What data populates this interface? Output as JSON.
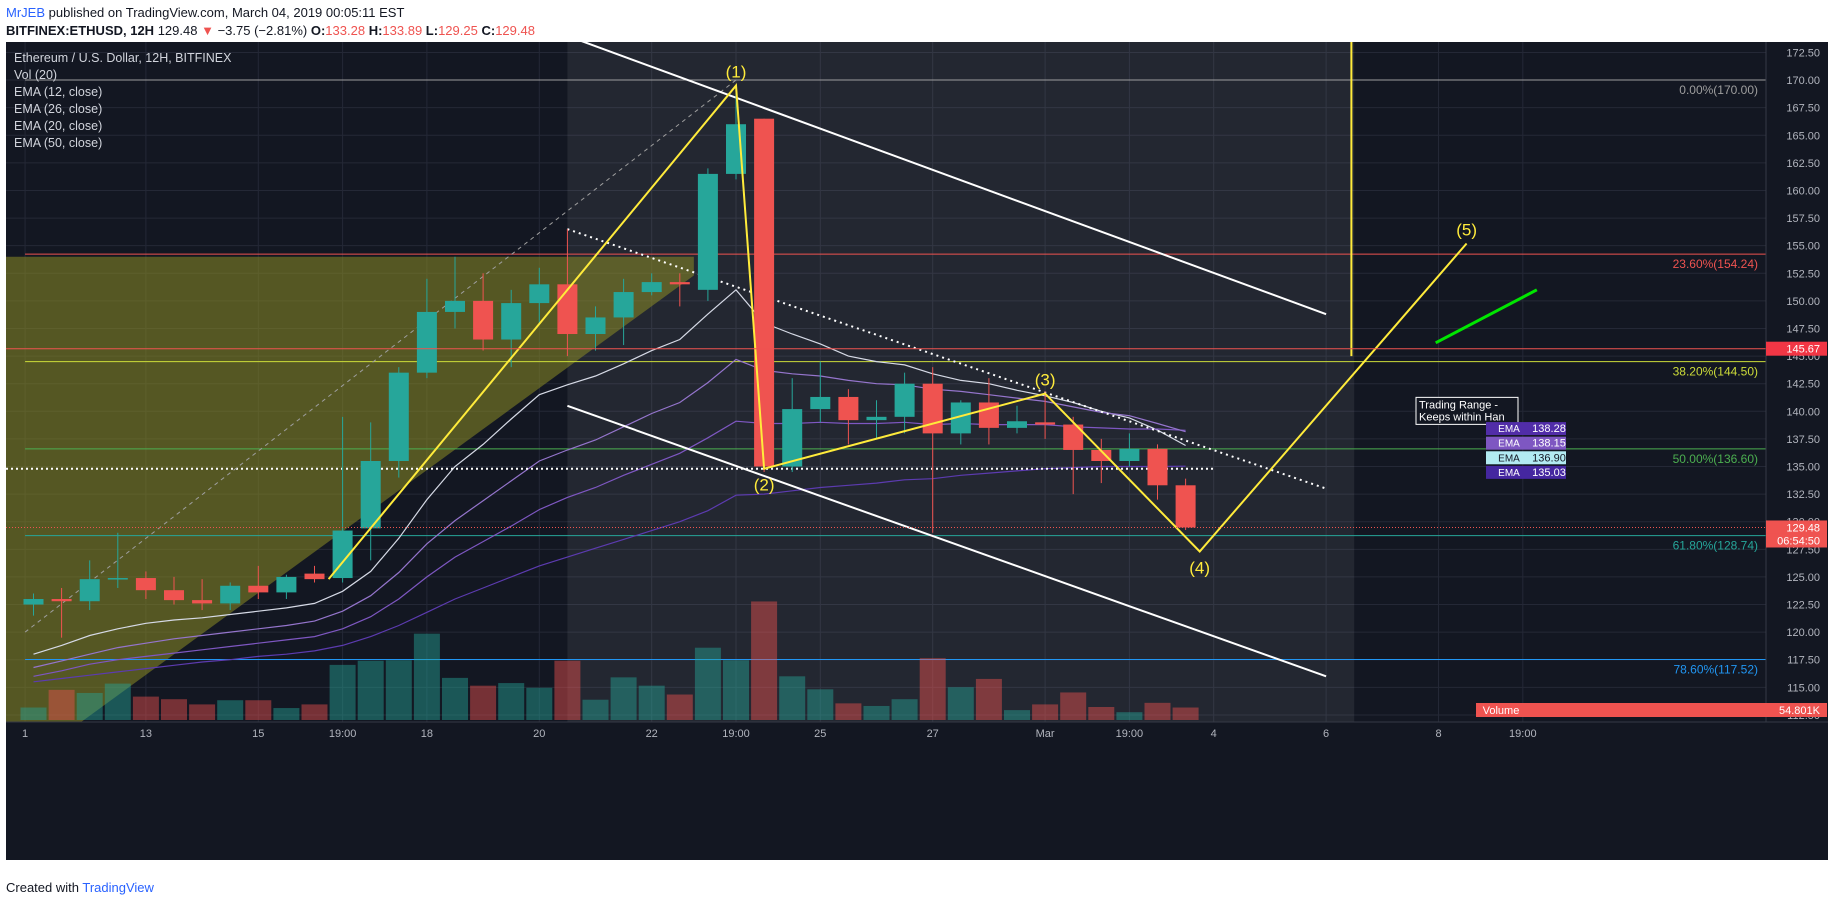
{
  "header": {
    "author": "MrJEB",
    "published": "published on TradingView.com, March 04, 2019 00:05:11 EST",
    "symbol": "BITFINEX:ETHUSD, 12H",
    "last": "129.48",
    "arrow": "▼",
    "change": "−3.75 (−2.81%)",
    "o_label": "O:",
    "o": "133.28",
    "h_label": "H:",
    "h": "133.89",
    "l_label": "L:",
    "l": "129.25",
    "c_label": "C:",
    "c": "129.48"
  },
  "legend": [
    "Ethereum / U.S. Dollar, 12H, BITFINEX",
    "Vol (20)",
    "EMA (12, close)",
    "EMA (26, close)",
    "EMA (20, close)",
    "EMA (50, close)"
  ],
  "footer": {
    "created_with": "Created with",
    "brand": "TradingView"
  },
  "colors": {
    "background": "#131722",
    "up": "#26a69a",
    "down": "#ef5350",
    "elliott": "#ffeb3b",
    "channel": "#ffffff",
    "fib_shade": "#9b9b2f"
  },
  "chart_data": {
    "type": "candlestick",
    "title": "Ethereum / U.S. Dollar, 12H, BITFINEX",
    "ylim": [
      111.5,
      173.5
    ],
    "y_ticks": [
      "172.50",
      "170.00",
      "167.50",
      "165.00",
      "162.50",
      "160.00",
      "157.50",
      "155.00",
      "152.50",
      "150.00",
      "147.50",
      "145.00",
      "142.50",
      "140.00",
      "137.50",
      "135.00",
      "132.50",
      "130.00",
      "127.50",
      "125.00",
      "122.50",
      "120.00",
      "117.50",
      "115.00",
      "112.50"
    ],
    "x_ticks": [
      {
        "i": -0.3,
        "label": "1"
      },
      {
        "i": 4,
        "label": "13"
      },
      {
        "i": 8,
        "label": "15"
      },
      {
        "i": 11,
        "label": "19:00"
      },
      {
        "i": 14,
        "label": "18"
      },
      {
        "i": 18,
        "label": "20"
      },
      {
        "i": 22,
        "label": "22"
      },
      {
        "i": 25,
        "label": "19:00"
      },
      {
        "i": 28,
        "label": "25"
      },
      {
        "i": 32,
        "label": "27"
      },
      {
        "i": 36,
        "label": "Mar"
      },
      {
        "i": 39,
        "label": "19:00"
      },
      {
        "i": 42,
        "label": "4"
      },
      {
        "i": 46,
        "label": "6"
      },
      {
        "i": 50,
        "label": "8"
      },
      {
        "i": 53,
        "label": "19:00"
      }
    ],
    "candles": [
      {
        "o": 122.5,
        "h": 123.5,
        "l": 121.5,
        "c": 123.0
      },
      {
        "o": 123.0,
        "h": 124.0,
        "l": 119.5,
        "c": 122.8
      },
      {
        "o": 122.8,
        "h": 126.5,
        "l": 122.0,
        "c": 124.8
      },
      {
        "o": 124.8,
        "h": 129.0,
        "l": 124.0,
        "c": 124.9
      },
      {
        "o": 124.9,
        "h": 125.5,
        "l": 123.0,
        "c": 123.8
      },
      {
        "o": 123.8,
        "h": 125.0,
        "l": 122.5,
        "c": 122.9
      },
      {
        "o": 122.9,
        "h": 124.8,
        "l": 122.0,
        "c": 122.6
      },
      {
        "o": 122.6,
        "h": 124.5,
        "l": 122.0,
        "c": 124.2
      },
      {
        "o": 124.2,
        "h": 126.0,
        "l": 123.0,
        "c": 123.6
      },
      {
        "o": 123.6,
        "h": 125.2,
        "l": 123.0,
        "c": 125.0
      },
      {
        "o": 125.3,
        "h": 126.0,
        "l": 124.5,
        "c": 124.8
      },
      {
        "o": 124.9,
        "h": 139.5,
        "l": 124.5,
        "c": 129.2
      },
      {
        "o": 129.4,
        "h": 139.0,
        "l": 126.5,
        "c": 135.5
      },
      {
        "o": 135.5,
        "h": 144.0,
        "l": 134.0,
        "c": 143.5
      },
      {
        "o": 143.5,
        "h": 152.0,
        "l": 143.0,
        "c": 149.0
      },
      {
        "o": 149.0,
        "h": 154.0,
        "l": 147.5,
        "c": 150.0
      },
      {
        "o": 150.0,
        "h": 152.5,
        "l": 145.5,
        "c": 146.5
      },
      {
        "o": 146.5,
        "h": 151.0,
        "l": 144.0,
        "c": 149.8
      },
      {
        "o": 149.8,
        "h": 153.0,
        "l": 148.0,
        "c": 151.5
      },
      {
        "o": 151.5,
        "h": 156.5,
        "l": 145.0,
        "c": 147.0
      },
      {
        "o": 147.0,
        "h": 149.5,
        "l": 145.5,
        "c": 148.5
      },
      {
        "o": 148.5,
        "h": 152.0,
        "l": 146.0,
        "c": 150.8
      },
      {
        "o": 150.8,
        "h": 152.5,
        "l": 150.5,
        "c": 151.7
      },
      {
        "o": 151.7,
        "h": 152.5,
        "l": 149.5,
        "c": 151.5
      },
      {
        "o": 151.0,
        "h": 162.0,
        "l": 150.0,
        "c": 161.5
      },
      {
        "o": 161.5,
        "h": 169.5,
        "l": 161.0,
        "c": 166.0
      },
      {
        "o": 166.5,
        "h": 166.5,
        "l": 134.5,
        "c": 135.0
      },
      {
        "o": 135.0,
        "h": 143.0,
        "l": 134.5,
        "c": 140.2
      },
      {
        "o": 140.2,
        "h": 144.5,
        "l": 139.0,
        "c": 141.3
      },
      {
        "o": 141.3,
        "h": 142.0,
        "l": 137.0,
        "c": 139.2
      },
      {
        "o": 139.2,
        "h": 141.0,
        "l": 137.5,
        "c": 139.5
      },
      {
        "o": 139.5,
        "h": 143.5,
        "l": 138.0,
        "c": 142.5
      },
      {
        "o": 142.5,
        "h": 144.0,
        "l": 129.0,
        "c": 138.0
      },
      {
        "o": 138.0,
        "h": 141.0,
        "l": 137.0,
        "c": 140.8
      },
      {
        "o": 140.8,
        "h": 143.0,
        "l": 137.0,
        "c": 138.5
      },
      {
        "o": 138.5,
        "h": 140.5,
        "l": 138.0,
        "c": 139.1
      },
      {
        "o": 139.0,
        "h": 141.8,
        "l": 137.5,
        "c": 138.8
      },
      {
        "o": 138.8,
        "h": 139.5,
        "l": 132.5,
        "c": 136.5
      },
      {
        "o": 136.5,
        "h": 137.5,
        "l": 133.5,
        "c": 135.5
      },
      {
        "o": 135.5,
        "h": 138.0,
        "l": 135.0,
        "c": 136.6
      },
      {
        "o": 136.6,
        "h": 137.0,
        "l": 132.0,
        "c": 133.3
      },
      {
        "o": 133.3,
        "h": 133.9,
        "l": 129.25,
        "c": 129.48
      }
    ],
    "volume": {
      "ylim": [
        0,
        4000
      ],
      "values": [
        240,
        580,
        520,
        700,
        450,
        400,
        300,
        380,
        380,
        230,
        300,
        1060,
        1140,
        1150,
        1660,
        810,
        660,
        710,
        620,
        1140,
        390,
        820,
        660,
        490,
        1390,
        1150,
        2280,
        840,
        590,
        320,
        270,
        400,
        1190,
        630,
        790,
        190,
        300,
        530,
        250,
        150,
        330,
        240
      ],
      "label": "Volume",
      "value_label": "54.801K"
    },
    "ema_lines": [
      {
        "name": "EMA (12, close)",
        "color": "#d6dae6",
        "tag": "136.90",
        "tag_bg": "#b2ebf2",
        "tag_fg": "#131722",
        "values": [
          118.0,
          118.8,
          119.7,
          120.3,
          120.8,
          121.1,
          121.3,
          121.6,
          121.9,
          122.2,
          122.6,
          123.7,
          125.5,
          128.5,
          132.0,
          135.0,
          137.0,
          139.3,
          141.5,
          142.4,
          143.2,
          144.3,
          145.5,
          146.5,
          148.8,
          151.0,
          148.0,
          147.0,
          146.1,
          145.0,
          144.5,
          144.2,
          143.4,
          142.8,
          142.5,
          141.9,
          141.4,
          140.8,
          140.0,
          139.4,
          138.3,
          136.9
        ]
      },
      {
        "name": "EMA (26, close)",
        "color": "#7e57c2",
        "tag": "138.28",
        "tag_bg": "#512da8",
        "tag_fg": "#ffffff",
        "values": [
          116.0,
          116.5,
          117.1,
          117.5,
          117.8,
          118.1,
          118.4,
          118.7,
          119.0,
          119.3,
          119.6,
          120.3,
          121.4,
          123.0,
          125.0,
          126.8,
          128.2,
          129.6,
          131.1,
          132.2,
          133.1,
          134.2,
          135.2,
          136.2,
          137.6,
          139.1,
          138.9,
          138.9,
          139.0,
          138.9,
          138.9,
          139.0,
          138.8,
          138.9,
          138.8,
          138.8,
          138.8,
          138.6,
          138.5,
          138.4,
          138.4,
          138.28
        ]
      },
      {
        "name": "EMA (20, close)",
        "color": "#9575cd",
        "tag": "138.15",
        "tag_bg": "#7e57c2",
        "tag_fg": "#ffffff",
        "values": [
          116.8,
          117.4,
          118.0,
          118.6,
          119.0,
          119.4,
          119.7,
          120.0,
          120.3,
          120.6,
          121.0,
          121.9,
          123.3,
          125.4,
          128.0,
          130.1,
          131.9,
          133.7,
          135.5,
          136.5,
          137.4,
          138.6,
          139.8,
          140.8,
          142.6,
          144.7,
          143.7,
          143.4,
          143.2,
          142.8,
          142.5,
          142.4,
          142.0,
          141.8,
          141.5,
          141.2,
          140.9,
          140.4,
          139.9,
          139.6,
          138.9,
          138.15
        ]
      },
      {
        "name": "EMA (50, close)",
        "color": "#5c3bb0",
        "tag": "135.03",
        "tag_bg": "#4527a0",
        "tag_fg": "#ffffff",
        "values": [
          115.5,
          115.8,
          116.1,
          116.4,
          116.7,
          117.0,
          117.3,
          117.5,
          117.8,
          118.0,
          118.3,
          118.8,
          119.6,
          120.6,
          121.8,
          123.0,
          124.0,
          125.0,
          126.0,
          126.8,
          127.6,
          128.4,
          129.2,
          130.0,
          131.0,
          132.4,
          132.5,
          132.8,
          133.1,
          133.3,
          133.5,
          133.8,
          133.9,
          134.2,
          134.4,
          134.6,
          134.8,
          134.9,
          135.0,
          135.0,
          135.0,
          135.03
        ]
      }
    ],
    "fibonacci": [
      {
        "label": "0.00%(170.00)",
        "price": 170.0,
        "color": "#9e9e9e"
      },
      {
        "label": "23.60%(154.24)",
        "price": 154.24,
        "color": "#ef5350"
      },
      {
        "label": "38.20%(144.50)",
        "price": 144.5,
        "color": "#cddc39"
      },
      {
        "label": "50.00%(136.60)",
        "price": 136.6,
        "color": "#4caf50"
      },
      {
        "label": "61.80%(128.74)",
        "price": 128.74,
        "color": "#26a69a"
      },
      {
        "label": "78.60%(117.52)",
        "price": 117.52,
        "color": "#2196f3"
      }
    ],
    "elliott_wave": [
      {
        "label": "(1)",
        "i": 25,
        "price": 169.5,
        "pos": "above"
      },
      {
        "label": "(2)",
        "i": 26,
        "price": 134.8,
        "pos": "below"
      },
      {
        "label": "(3)",
        "i": 36,
        "price": 141.6,
        "pos": "above"
      },
      {
        "label": "(4)",
        "i": 41.5,
        "price": 127.3,
        "pos": "below"
      },
      {
        "label": "(5)",
        "i": 51,
        "price": 155.2,
        "pos": "above"
      }
    ],
    "elliott_start": {
      "i": 10.5,
      "price": 124.8
    },
    "price_tags": [
      {
        "text": "145.67",
        "price": 145.67,
        "bg": "#f23645",
        "fg": "#ffffff"
      },
      {
        "text": "129.48",
        "price": 129.48,
        "bg": "#ef5350",
        "fg": "#ffffff"
      },
      {
        "text": "06:54:50",
        "price": 128.3,
        "bg": "#ef5350",
        "fg": "#ffffff"
      }
    ],
    "note_text": [
      "Trading Range -",
      "Keeps within Han"
    ]
  }
}
